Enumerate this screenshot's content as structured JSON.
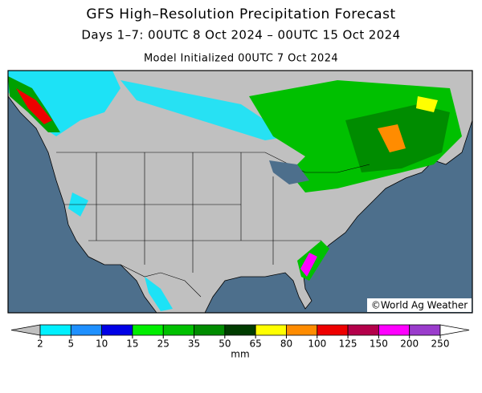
{
  "header": {
    "title": "GFS High–Resolution Precipitation Forecast",
    "subtitle": "Days 1–7: 00UTC 8 Oct 2024 – 00UTC 15 Oct 2024",
    "initialized": "Model Initialized 00UTC 7 Oct 2024"
  },
  "credit": "©World Ag Weather",
  "colorbar": {
    "levels": [
      2,
      5,
      10,
      15,
      25,
      35,
      50,
      65,
      80,
      100,
      125,
      150,
      200,
      250
    ],
    "colors": [
      "#00f0ff",
      "#1e90ff",
      "#0000e6",
      "#00ee00",
      "#00c000",
      "#008c00",
      "#003c00",
      "#ffff00",
      "#ff8c00",
      "#ee0000",
      "#b4004a",
      "#ff00ff",
      "#9a3ccc"
    ],
    "below_color": "#c0c0c0",
    "above_color": "#ffffff",
    "unit": "mm"
  }
}
